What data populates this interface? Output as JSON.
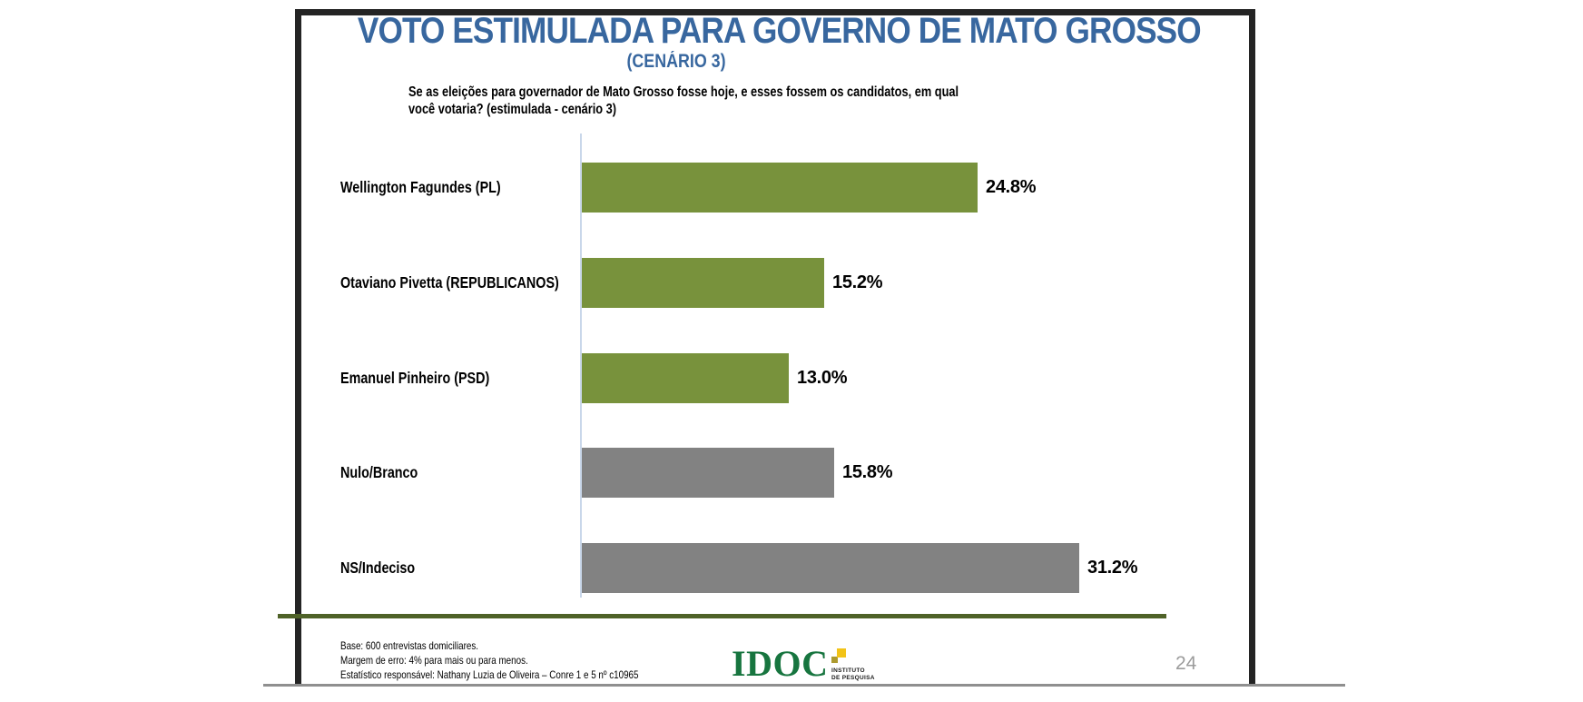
{
  "slide": {
    "title": "VOTO ESTIMULADA PARA GOVERNO DE MATO GROSSO",
    "subtitle": "(CENÁRIO 3)",
    "question": "Se as eleições para governador de Mato Grosso fosse hoje, e esses fossem os candidatos, em qual\nvocê votaria? (estimulada - cenário 3)",
    "page_number": "24"
  },
  "chart_data": {
    "type": "bar",
    "orientation": "horizontal",
    "title": "VOTO ESTIMULADA PARA GOVERNO DE MATO GROSSO (CENÁRIO 3)",
    "categories": [
      "Wellington Fagundes (PL)",
      "Otaviano Pivetta (REPUBLICANOS)",
      "Emanuel Pinheiro (PSD)",
      "Nulo/Branco",
      "NS/Indeciso"
    ],
    "values": [
      24.8,
      15.2,
      13.0,
      15.8,
      31.2
    ],
    "value_labels": [
      "24.8%",
      "15.2%",
      "13.0%",
      "15.8%",
      "31.2%"
    ],
    "bar_colors": [
      "#78923C",
      "#78923C",
      "#78923C",
      "#828282",
      "#828282"
    ],
    "xlim": [
      0,
      42
    ],
    "grid": false,
    "legend": false
  },
  "footer": {
    "lines": [
      "Base: 600 entrevistas domiciliares.",
      "Margem de erro: 4% para mais ou para menos.",
      "Estatístico responsável: Nathany Luzia de Oliveira – Conre 1 e 5 nº c10965"
    ]
  },
  "logo": {
    "name": "IDOC",
    "tagline_line1": "INSTITUTO",
    "tagline_line2": "DE PESQUISA"
  },
  "colors": {
    "title_blue": "#38679F",
    "bar_green": "#78923C",
    "bar_gray": "#828282",
    "baseline_green": "#4F6228",
    "axis_line": "#C9D7EA",
    "frame_dark": "#242424",
    "logo_green": "#17753F",
    "logo_square_yellow": "#F2C318",
    "logo_square_olive": "#AD9A2F",
    "page_number_gray": "#9C9C9C"
  }
}
